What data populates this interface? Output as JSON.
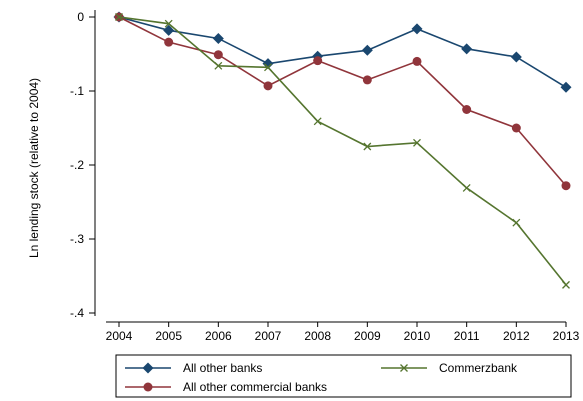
{
  "chart_data": {
    "type": "line",
    "ylabel": "Ln lending stock (relative to 2004)",
    "xlabel": "",
    "x": [
      2004,
      2005,
      2006,
      2007,
      2008,
      2009,
      2010,
      2011,
      2012,
      2013
    ],
    "ylim": [
      -0.4,
      0
    ],
    "yticks": [
      0,
      -0.1,
      -0.2,
      -0.3,
      -0.4
    ],
    "ytick_labels": [
      "0",
      "-.1",
      "-.2",
      "-.3",
      "-.4"
    ],
    "xtick_labels": [
      "2004",
      "2005",
      "2006",
      "2007",
      "2008",
      "2009",
      "2010",
      "2011",
      "2012",
      "2013"
    ],
    "grid": false,
    "legend_position": "bottom",
    "series": [
      {
        "name": "All other banks",
        "color": "#1a476f",
        "marker": "diamond",
        "values": [
          0,
          -0.018,
          -0.029,
          -0.063,
          -0.053,
          -0.045,
          -0.016,
          -0.043,
          -0.054,
          -0.095
        ]
      },
      {
        "name": "All other commercial banks",
        "color": "#90353b",
        "marker": "circle",
        "values": [
          0,
          -0.034,
          -0.051,
          -0.093,
          -0.059,
          -0.085,
          -0.06,
          -0.125,
          -0.15,
          -0.228
        ]
      },
      {
        "name": "Commerzbank",
        "color": "#55752f",
        "marker": "x",
        "values": [
          0,
          -0.009,
          -0.066,
          -0.068,
          -0.141,
          -0.175,
          -0.17,
          -0.231,
          -0.278,
          -0.362
        ]
      }
    ]
  }
}
